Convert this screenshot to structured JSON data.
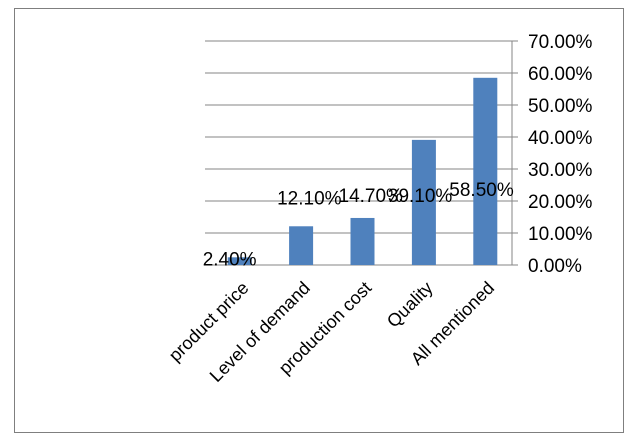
{
  "chart_data": {
    "type": "bar",
    "title": "",
    "xlabel": "",
    "ylabel": "",
    "categories": [
      "product price",
      "Level of demand",
      "production cost",
      "Quality",
      "All mentioned"
    ],
    "values": [
      2.4,
      12.1,
      14.7,
      39.1,
      58.5
    ],
    "data_labels": [
      "2.40%",
      "12.10%",
      "14.70%",
      "39.10%",
      "58.50%"
    ],
    "ylim": [
      0,
      70
    ],
    "yticks": [
      0,
      10,
      20,
      30,
      40,
      50,
      60,
      70
    ],
    "ytick_labels": [
      "0.00%",
      "10.00%",
      "20.00%",
      "30.00%",
      "40.00%",
      "50.00%",
      "60.00%",
      "70.00%"
    ],
    "y_axis_side": "right",
    "grid": true,
    "legend": "none",
    "bar_color": "#4f81bd",
    "grid_color": "#868686"
  }
}
